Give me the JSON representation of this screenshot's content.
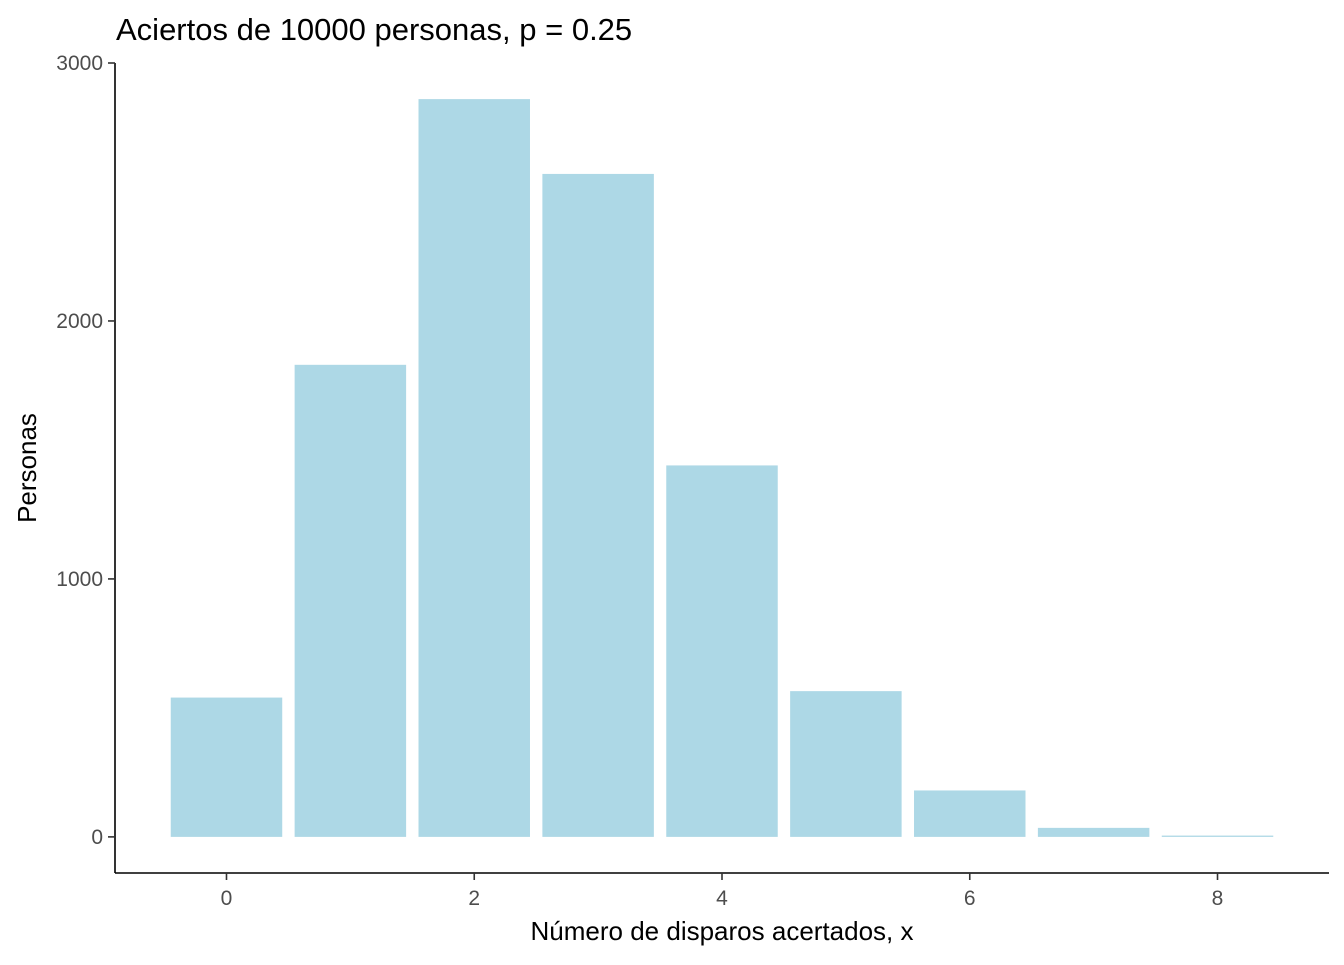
{
  "chart_data": {
    "type": "bar",
    "title": "Aciertos de 10000 personas,  p = 0.25",
    "xlabel": "Número de disparos acertados, x",
    "ylabel": "Personas",
    "categories": [
      0,
      1,
      2,
      3,
      4,
      5,
      6,
      7,
      8
    ],
    "values": [
      540,
      1830,
      2860,
      2570,
      1440,
      565,
      180,
      35,
      5
    ],
    "xlim": [
      -0.9,
      8.9
    ],
    "ylim": [
      -140,
      3000
    ],
    "x_ticks": [
      "0",
      "2",
      "4",
      "6",
      "8"
    ],
    "y_ticks": [
      "0",
      "1000",
      "2000",
      "3000"
    ],
    "bar_color": "#add8e6",
    "grid": false,
    "legend": "none"
  }
}
